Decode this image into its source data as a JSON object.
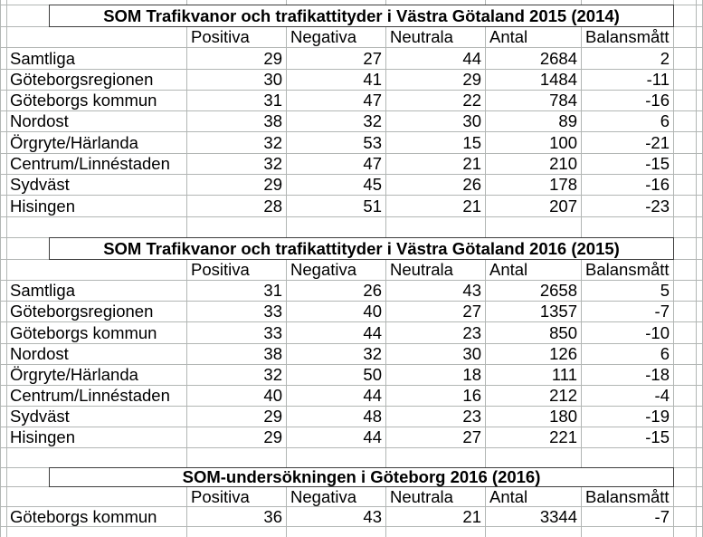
{
  "sheet": {
    "column_headers": [
      "Positiva",
      "Negativa",
      "Neutrala",
      "Antal",
      "Balansmått"
    ],
    "tables": [
      {
        "title": "SOM Trafikvanor och trafikattityder i Västra Götaland 2015 (2014)",
        "rows": [
          {
            "label": "Samtliga",
            "values": [
              "29",
              "27",
              "44",
              "2684",
              "2"
            ]
          },
          {
            "label": "Göteborgsregionen",
            "values": [
              "30",
              "41",
              "29",
              "1484",
              "-11"
            ]
          },
          {
            "label": "Göteborgs kommun",
            "values": [
              "31",
              "47",
              "22",
              "784",
              "-16"
            ]
          },
          {
            "label": "Nordost",
            "values": [
              "38",
              "32",
              "30",
              "89",
              "6"
            ]
          },
          {
            "label": "Örgryte/Härlanda",
            "values": [
              "32",
              "53",
              "15",
              "100",
              "-21"
            ]
          },
          {
            "label": "Centrum/Linnéstaden",
            "values": [
              "32",
              "47",
              "21",
              "210",
              "-15"
            ]
          },
          {
            "label": "Sydväst",
            "values": [
              "29",
              "45",
              "26",
              "178",
              "-16"
            ]
          },
          {
            "label": "Hisingen",
            "values": [
              "28",
              "51",
              "21",
              "207",
              "-23"
            ]
          }
        ]
      },
      {
        "title": "SOM Trafikvanor och trafikattityder i Västra Götaland 2016 (2015)",
        "rows": [
          {
            "label": "Samtliga",
            "values": [
              "31",
              "26",
              "43",
              "2658",
              "5"
            ]
          },
          {
            "label": "Göteborgsregionen",
            "values": [
              "33",
              "40",
              "27",
              "1357",
              "-7"
            ]
          },
          {
            "label": "Göteborgs kommun",
            "values": [
              "33",
              "44",
              "23",
              "850",
              "-10"
            ]
          },
          {
            "label": "Nordost",
            "values": [
              "38",
              "32",
              "30",
              "126",
              "6"
            ]
          },
          {
            "label": "Örgryte/Härlanda",
            "values": [
              "32",
              "50",
              "18",
              "111",
              "-18"
            ]
          },
          {
            "label": "Centrum/Linnéstaden",
            "values": [
              "40",
              "44",
              "16",
              "212",
              "-4"
            ]
          },
          {
            "label": "Sydväst",
            "values": [
              "29",
              "48",
              "23",
              "180",
              "-19"
            ]
          },
          {
            "label": "Hisingen",
            "values": [
              "29",
              "44",
              "27",
              "221",
              "-15"
            ]
          }
        ]
      },
      {
        "title": "SOM-undersökningen i Göteborg 2016 (2016)",
        "rows": [
          {
            "label": "Göteborgs kommun",
            "values": [
              "36",
              "43",
              "21",
              "3344",
              "-7"
            ]
          }
        ]
      }
    ],
    "colors": {
      "background": "#ffffff",
      "text": "#000000",
      "gridline": "#b2b6b4",
      "title_border": "#3d3d3d"
    }
  }
}
